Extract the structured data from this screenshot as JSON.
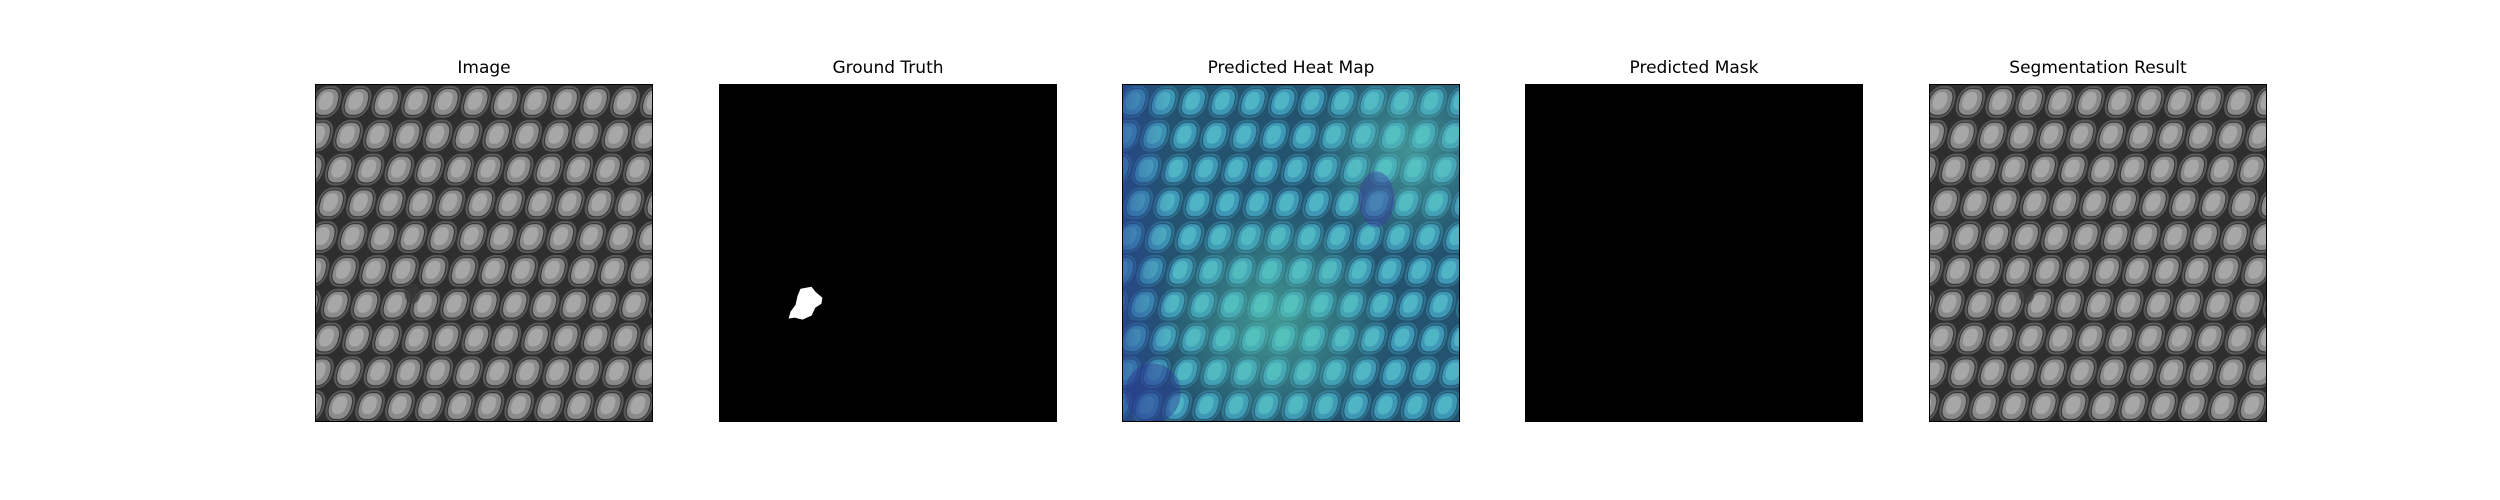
{
  "panels": [
    {
      "title": "Image"
    },
    {
      "title": "Ground Truth"
    },
    {
      "title": "Predicted Heat Map"
    },
    {
      "title": "Predicted Mask"
    },
    {
      "title": "Segmentation Result"
    }
  ]
}
